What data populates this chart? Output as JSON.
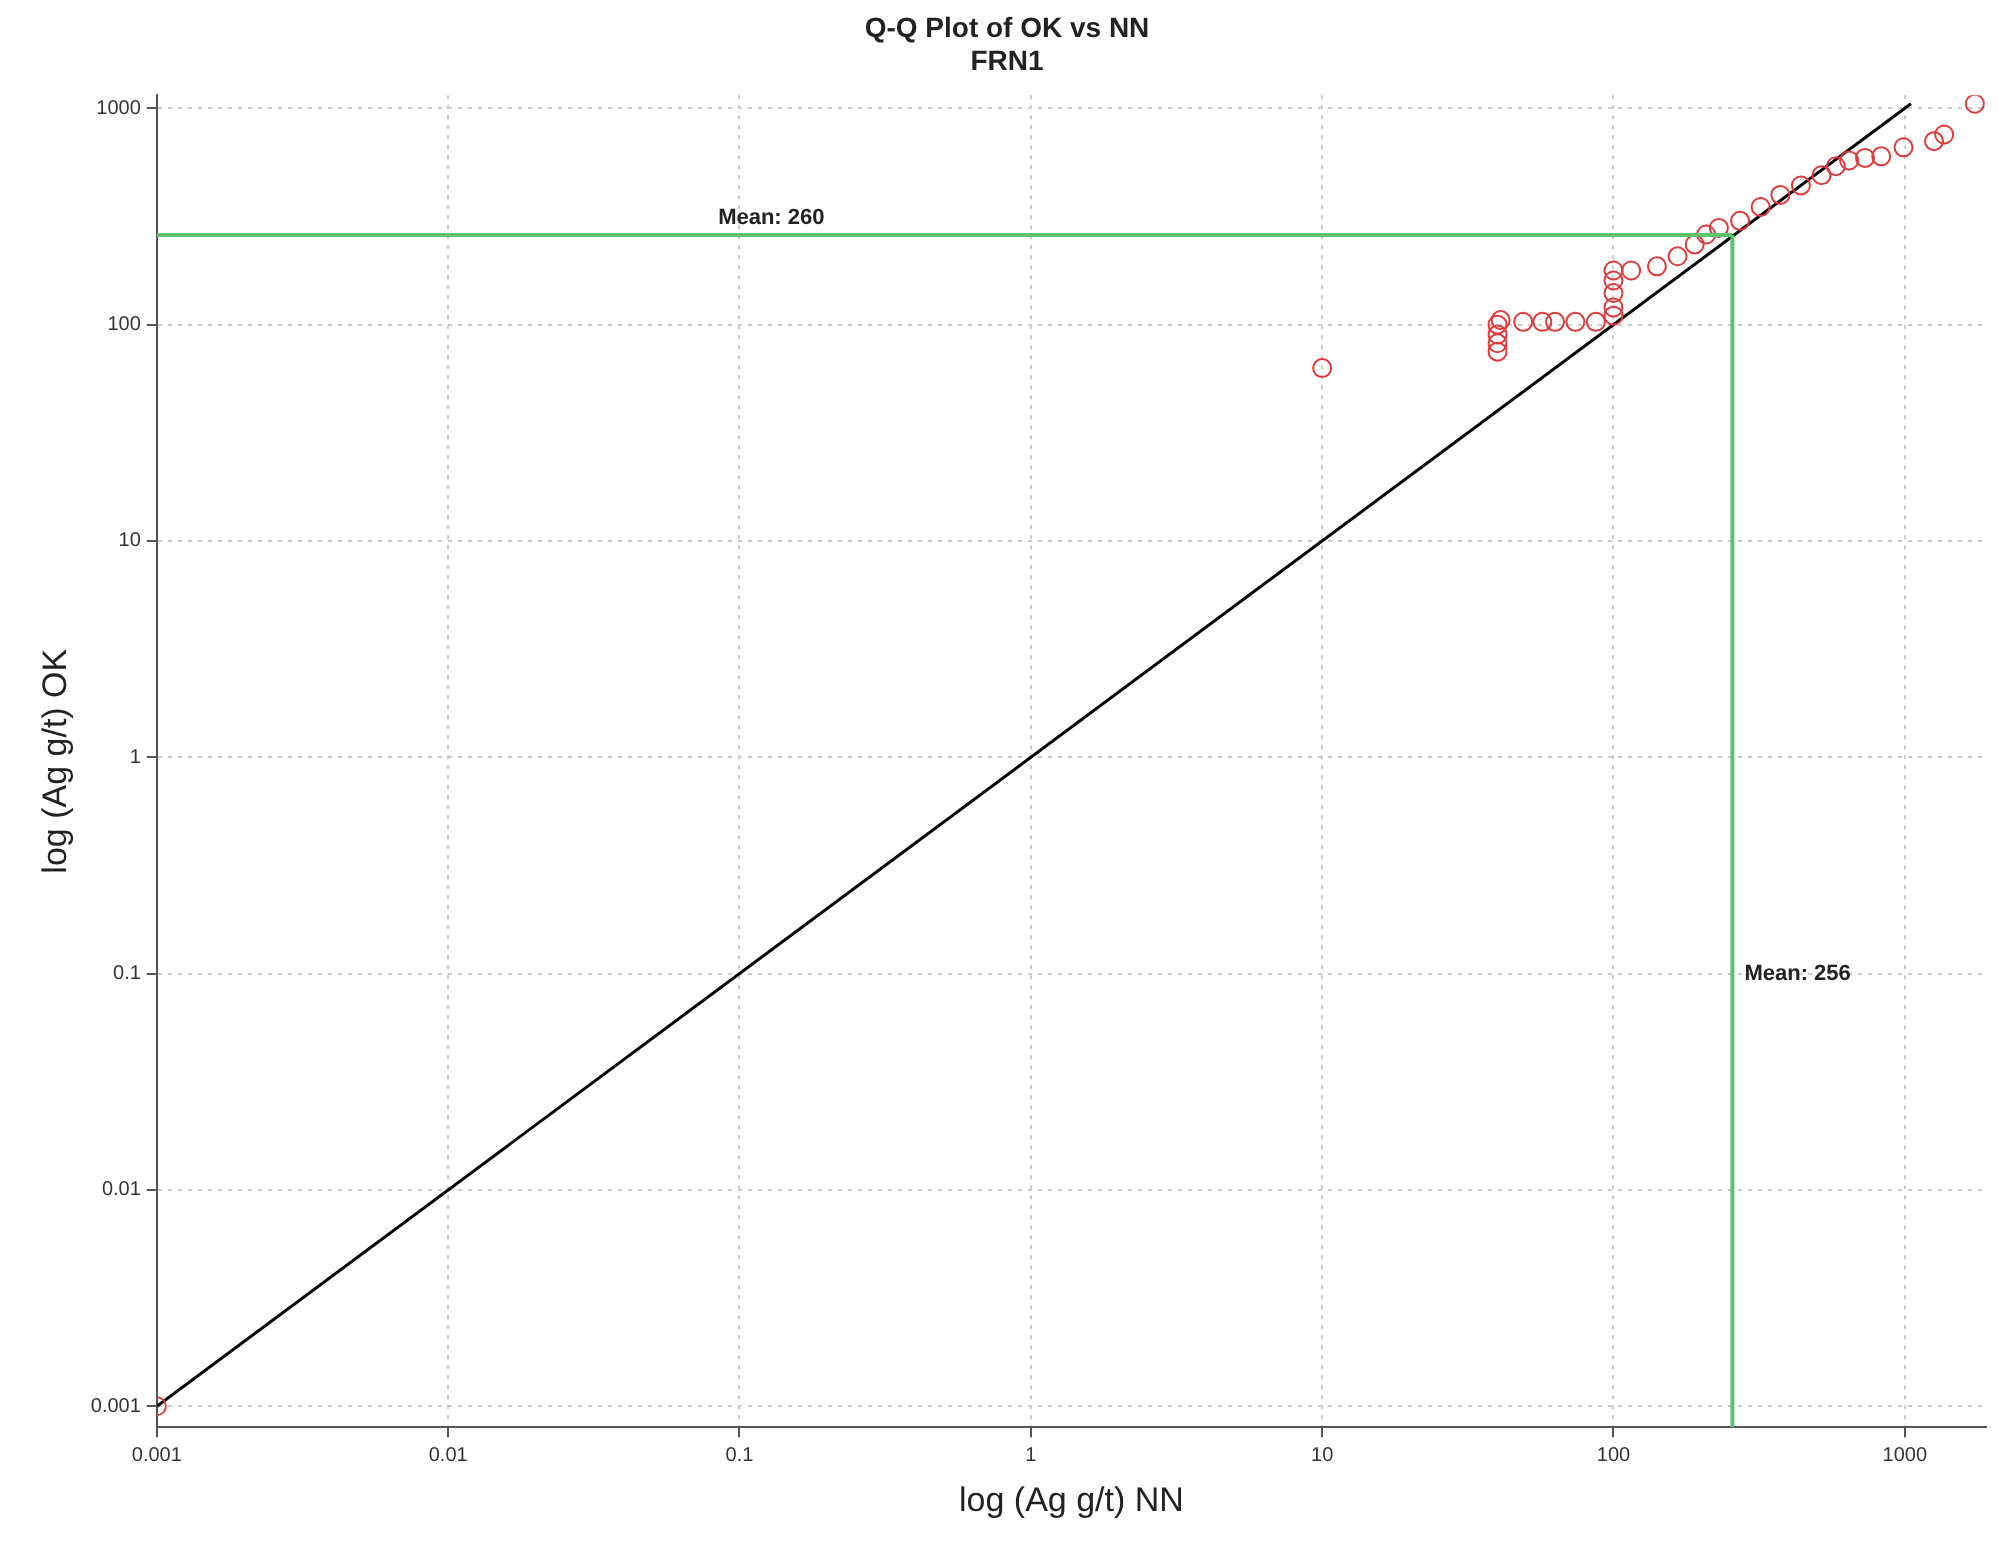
{
  "chart_data": {
    "type": "scatter",
    "title": "Q-Q Plot of OK vs NN",
    "subtitle": "FRN1",
    "xlabel": "log (Ag g/t) NN",
    "ylabel": "log (Ag g/t) OK",
    "log": "xy",
    "grid": true,
    "legend": false,
    "xlim": [
      0.001,
      1900
    ],
    "ylim": [
      0.0008,
      1150
    ],
    "xticks": [
      0.001,
      0.01,
      0.1,
      1,
      10,
      100,
      1000
    ],
    "yticks": [
      0.001,
      0.01,
      0.1,
      1,
      10,
      100,
      1000
    ],
    "series": [
      {
        "marker": "circle",
        "color": "#e03a3a",
        "x": [
          0.001,
          10,
          40,
          40,
          40,
          40,
          41,
          49,
          57,
          63,
          74,
          87,
          100,
          100,
          100,
          100,
          100,
          115,
          141,
          166,
          190,
          208,
          230,
          272,
          320,
          374,
          440,
          518,
          580,
          644,
          730,
          830,
          990,
          1260,
          1365,
          1740
        ],
        "values": [
          0.001,
          63,
          75,
          82,
          90,
          100,
          105,
          103,
          103,
          103,
          103,
          103,
          110,
          120,
          140,
          160,
          178,
          178,
          186,
          207,
          235,
          261,
          280,
          302,
          350,
          398,
          440,
          491,
          540,
          574,
          590,
          600,
          660,
          705,
          757,
          1050
        ]
      },
      {
        "type": "line",
        "marker": "none",
        "color": "#000000",
        "x": [
          0.001,
          1050
        ],
        "values": [
          0.001,
          1050
        ]
      }
    ],
    "ref_lines": [
      {
        "axis": "y",
        "value": 260,
        "label": "Mean: 260",
        "color": "#5cc46a"
      },
      {
        "axis": "x",
        "value": 256,
        "label": "Mean: 256",
        "color": "#5cc46a"
      }
    ]
  }
}
